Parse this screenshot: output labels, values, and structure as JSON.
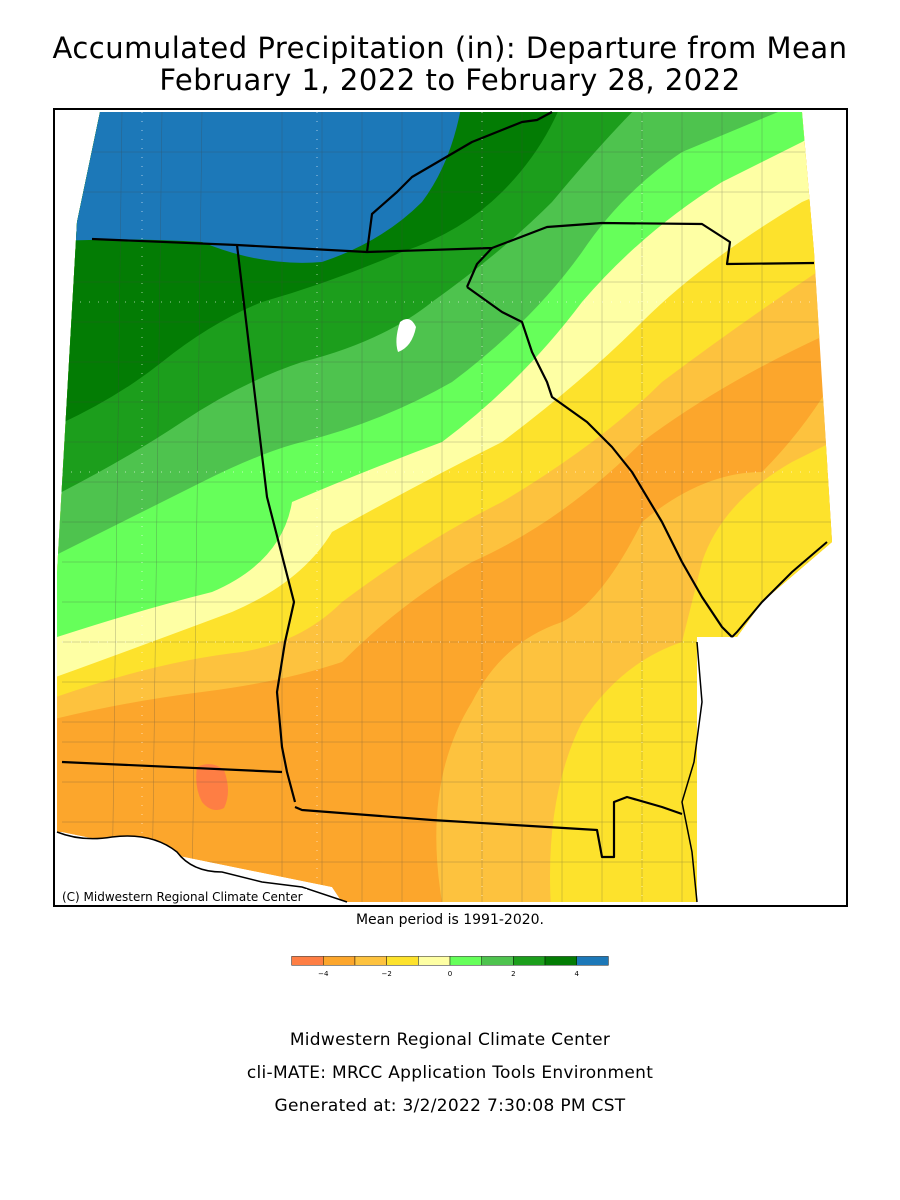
{
  "title": {
    "line1": "Accumulated Precipitation (in): Departure from Mean",
    "line2": "February 1, 2022 to February 28, 2022"
  },
  "map": {
    "copyright": "(C) Midwestern Regional Climate Center",
    "mean_period": "Mean period is 1991-2020."
  },
  "legend": {
    "bins": [
      {
        "range": "< -4",
        "color": "#fe7e44"
      },
      {
        "range": "-4 to -3",
        "color": "#fca62c"
      },
      {
        "range": "-3 to -2",
        "color": "#fdc23e"
      },
      {
        "range": "-2 to -1",
        "color": "#fde22c"
      },
      {
        "range": "-1 to 0",
        "color": "#feffa4"
      },
      {
        "range": "0 to 1",
        "color": "#66ff5a"
      },
      {
        "range": "1 to 2",
        "color": "#4ec34e"
      },
      {
        "range": "2 to 3",
        "color": "#1c9e1c"
      },
      {
        "range": "3 to 4",
        "color": "#037c04"
      },
      {
        "range": "> 4",
        "color": "#1c78b8"
      }
    ],
    "tick_labels": [
      "-4",
      "-2",
      "0",
      "2",
      "4"
    ]
  },
  "footer": {
    "line1": "Midwestern Regional Climate Center",
    "line2": "cli-MATE: MRCC Application Tools Environment",
    "line3": "Generated at: 3/2/2022 7:30:08 PM CST"
  }
}
